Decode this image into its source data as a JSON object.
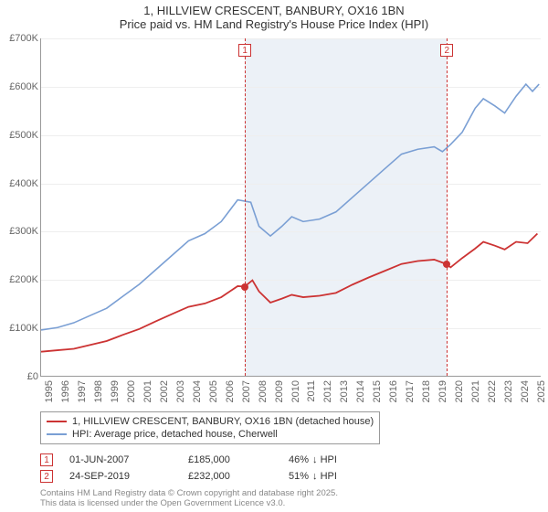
{
  "title": {
    "line1": "1, HILLVIEW CRESCENT, BANBURY, OX16 1BN",
    "line2": "Price paid vs. HM Land Registry's House Price Index (HPI)"
  },
  "chart": {
    "type": "line",
    "x_years": [
      1995,
      1996,
      1997,
      1998,
      1999,
      2000,
      2001,
      2002,
      2003,
      2004,
      2005,
      2006,
      2007,
      2008,
      2009,
      2010,
      2011,
      2012,
      2013,
      2014,
      2015,
      2016,
      2017,
      2018,
      2019,
      2020,
      2021,
      2022,
      2023,
      2024,
      2025
    ],
    "y_ticks": [
      0,
      100000,
      200000,
      300000,
      400000,
      500000,
      600000,
      700000
    ],
    "y_tick_labels": [
      "£0",
      "£100K",
      "£200K",
      "£300K",
      "£400K",
      "£500K",
      "£600K",
      "£700K"
    ],
    "xlim": [
      1995,
      2025.5
    ],
    "ylim": [
      0,
      700000
    ],
    "background_color": "#ffffff",
    "grid_color": "#eeeeee",
    "axis_color": "#999999",
    "shaded_band": {
      "x_start": 2007.42,
      "x_end": 2019.73,
      "color": "#eaf0f6"
    },
    "series": [
      {
        "id": "hpi",
        "label": "HPI: Average price, detached house, Cherwell",
        "color": "#7a9fd4",
        "line_width": 1.6,
        "points": [
          [
            1995,
            95000
          ],
          [
            1996,
            100000
          ],
          [
            1997,
            110000
          ],
          [
            1998,
            125000
          ],
          [
            1999,
            140000
          ],
          [
            2000,
            165000
          ],
          [
            2001,
            190000
          ],
          [
            2002,
            220000
          ],
          [
            2003,
            250000
          ],
          [
            2004,
            280000
          ],
          [
            2005,
            295000
          ],
          [
            2006,
            320000
          ],
          [
            2007,
            365000
          ],
          [
            2007.8,
            360000
          ],
          [
            2008.3,
            310000
          ],
          [
            2009,
            290000
          ],
          [
            2009.7,
            310000
          ],
          [
            2010.3,
            330000
          ],
          [
            2011,
            320000
          ],
          [
            2012,
            325000
          ],
          [
            2013,
            340000
          ],
          [
            2014,
            370000
          ],
          [
            2015,
            400000
          ],
          [
            2016,
            430000
          ],
          [
            2017,
            460000
          ],
          [
            2018,
            470000
          ],
          [
            2019,
            475000
          ],
          [
            2019.5,
            465000
          ],
          [
            2020,
            480000
          ],
          [
            2020.7,
            505000
          ],
          [
            2021.5,
            555000
          ],
          [
            2022,
            575000
          ],
          [
            2022.7,
            560000
          ],
          [
            2023.3,
            545000
          ],
          [
            2024,
            580000
          ],
          [
            2024.6,
            605000
          ],
          [
            2025,
            590000
          ],
          [
            2025.4,
            605000
          ]
        ]
      },
      {
        "id": "price_paid",
        "label": "1, HILLVIEW CRESCENT, BANBURY, OX16 1BN (detached house)",
        "color": "#cc3333",
        "line_width": 1.8,
        "points": [
          [
            1995,
            50000
          ],
          [
            1996,
            53000
          ],
          [
            1997,
            56000
          ],
          [
            1998,
            64000
          ],
          [
            1999,
            72000
          ],
          [
            2000,
            85000
          ],
          [
            2001,
            97000
          ],
          [
            2002,
            113000
          ],
          [
            2003,
            128000
          ],
          [
            2004,
            143000
          ],
          [
            2005,
            150000
          ],
          [
            2006,
            163000
          ],
          [
            2007,
            186000
          ],
          [
            2007.42,
            185000
          ],
          [
            2007.9,
            198000
          ],
          [
            2008.3,
            175000
          ],
          [
            2009,
            152000
          ],
          [
            2009.7,
            160000
          ],
          [
            2010.3,
            168000
          ],
          [
            2011,
            163000
          ],
          [
            2012,
            166000
          ],
          [
            2013,
            172000
          ],
          [
            2014,
            189000
          ],
          [
            2015,
            204000
          ],
          [
            2016,
            218000
          ],
          [
            2017,
            232000
          ],
          [
            2018,
            238000
          ],
          [
            2019,
            241000
          ],
          [
            2019.73,
            232000
          ],
          [
            2020,
            225000
          ],
          [
            2020.7,
            244000
          ],
          [
            2021.5,
            264000
          ],
          [
            2022,
            278000
          ],
          [
            2022.7,
            270000
          ],
          [
            2023.3,
            262000
          ],
          [
            2024,
            278000
          ],
          [
            2024.7,
            275000
          ],
          [
            2025.3,
            295000
          ]
        ]
      }
    ],
    "sale_markers": [
      {
        "n": "1",
        "x": 2007.42,
        "y": 185000,
        "color": "#cc3333"
      },
      {
        "n": "2",
        "x": 2019.73,
        "y": 232000,
        "color": "#cc3333"
      }
    ]
  },
  "legend": {
    "items": [
      {
        "color": "#cc3333",
        "label": "1, HILLVIEW CRESCENT, BANBURY, OX16 1BN (detached house)"
      },
      {
        "color": "#7a9fd4",
        "label": "HPI: Average price, detached house, Cherwell"
      }
    ]
  },
  "sales_table": {
    "rows": [
      {
        "n": "1",
        "date": "01-JUN-2007",
        "price": "£185,000",
        "pct": "46%",
        "cmp": "↓ HPI"
      },
      {
        "n": "2",
        "date": "24-SEP-2019",
        "price": "£232,000",
        "pct": "51%",
        "cmp": "↓ HPI"
      }
    ]
  },
  "footnote": {
    "line1": "Contains HM Land Registry data © Crown copyright and database right 2025.",
    "line2": "This data is licensed under the Open Government Licence v3.0."
  }
}
